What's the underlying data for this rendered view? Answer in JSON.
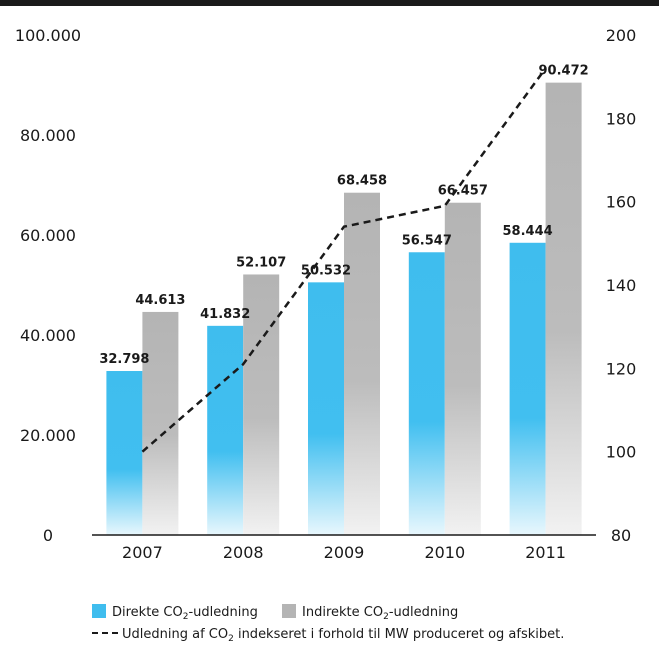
{
  "chart_data": {
    "type": "bar",
    "categories": [
      "2007",
      "2008",
      "2009",
      "2010",
      "2011"
    ],
    "series": [
      {
        "name": "Direkte CO2-udledning",
        "values": [
          32798,
          41832,
          50532,
          56547,
          58444
        ],
        "axis": "left",
        "color": "#3fbdee"
      },
      {
        "name": "Indirekte CO2-udledning",
        "values": [
          44613,
          52107,
          68458,
          66457,
          90472
        ],
        "axis": "left",
        "color": "#b4b4b4"
      },
      {
        "name": "Udledning af CO2 indekseret i forhold til MW produceret og afskibet.",
        "type": "line",
        "values": [
          100,
          121,
          154,
          159,
          192
        ],
        "axis": "right",
        "style": "dashed"
      }
    ],
    "data_labels": {
      "direct": [
        "32.798",
        "41.832",
        "50.532",
        "56.547",
        "58.444"
      ],
      "indirect": [
        "44.613",
        "52.107",
        "68.458",
        "66.457",
        "90.472"
      ]
    },
    "ylim": [
      0,
      100000
    ],
    "yticks": [
      "0",
      "20.000",
      "40.000",
      "60.000",
      "80.000",
      "100.000"
    ],
    "y2lim": [
      80,
      200
    ],
    "y2ticks": [
      "80",
      "100",
      "120",
      "140",
      "160",
      "180",
      "200"
    ],
    "title": "",
    "xlabel": "",
    "ylabel": "",
    "y2label": "",
    "grid": false,
    "legend_position": "bottom"
  },
  "legend": {
    "direct_pre": "Direkte CO",
    "direct_post": "-udledning",
    "indirect_pre": "Indirekte CO",
    "indirect_post": "-udledning",
    "line_pre": "Udledning af CO",
    "line_post": " indekseret i forhold til MW produceret og afskibet.",
    "sub": "2"
  }
}
